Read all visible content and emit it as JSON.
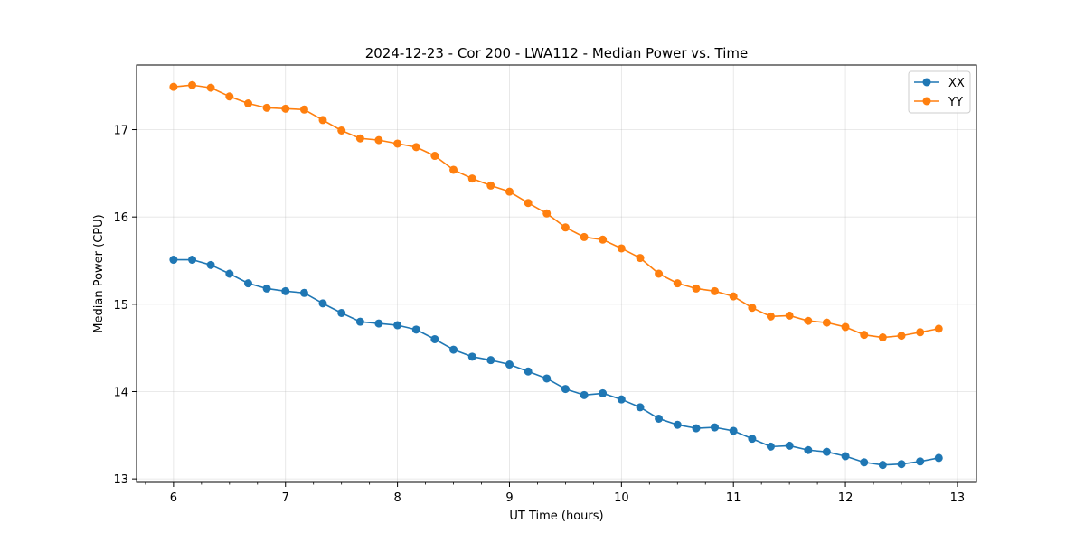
{
  "chart_data": {
    "type": "line",
    "title": "2024-12-23 - Cor 200 - LWA112 - Median Power vs. Time",
    "xlabel": "UT Time (hours)",
    "ylabel": "Median Power (CPU)",
    "xlim": [
      5.67,
      13.17
    ],
    "ylim": [
      12.96,
      17.74
    ],
    "xticks": [
      6,
      7,
      8,
      9,
      10,
      11,
      12,
      13
    ],
    "yticks": [
      13,
      14,
      15,
      16,
      17
    ],
    "x_minor_step": 0.25,
    "grid": true,
    "legend_position": "upper right",
    "x": [
      6.0,
      6.167,
      6.333,
      6.5,
      6.667,
      6.833,
      7.0,
      7.167,
      7.333,
      7.5,
      7.667,
      7.833,
      8.0,
      8.167,
      8.333,
      8.5,
      8.667,
      8.833,
      9.0,
      9.167,
      9.333,
      9.5,
      9.667,
      9.833,
      10.0,
      10.167,
      10.333,
      10.5,
      10.667,
      10.833,
      11.0,
      11.167,
      11.333,
      11.5,
      11.667,
      11.833,
      12.0,
      12.167,
      12.333,
      12.5,
      12.667,
      12.833
    ],
    "series": [
      {
        "name": "XX",
        "color": "#1f77b4",
        "values": [
          15.51,
          15.51,
          15.45,
          15.35,
          15.24,
          15.18,
          15.15,
          15.13,
          15.01,
          14.9,
          14.8,
          14.78,
          14.76,
          14.71,
          14.6,
          14.48,
          14.4,
          14.36,
          14.31,
          14.23,
          14.15,
          14.03,
          13.96,
          13.98,
          13.91,
          13.82,
          13.69,
          13.62,
          13.58,
          13.59,
          13.55,
          13.46,
          13.37,
          13.38,
          13.33,
          13.31,
          13.26,
          13.19,
          13.16,
          13.17,
          13.2,
          13.24
        ]
      },
      {
        "name": "YY",
        "color": "#ff7f0e",
        "values": [
          17.49,
          17.51,
          17.48,
          17.38,
          17.3,
          17.25,
          17.24,
          17.23,
          17.11,
          16.99,
          16.9,
          16.88,
          16.84,
          16.8,
          16.7,
          16.54,
          16.44,
          16.36,
          16.29,
          16.16,
          16.04,
          15.88,
          15.77,
          15.74,
          15.64,
          15.53,
          15.35,
          15.24,
          15.18,
          15.15,
          15.09,
          14.96,
          14.86,
          14.87,
          14.81,
          14.79,
          14.74,
          14.65,
          14.62,
          14.64,
          14.68,
          14.72
        ]
      }
    ]
  }
}
